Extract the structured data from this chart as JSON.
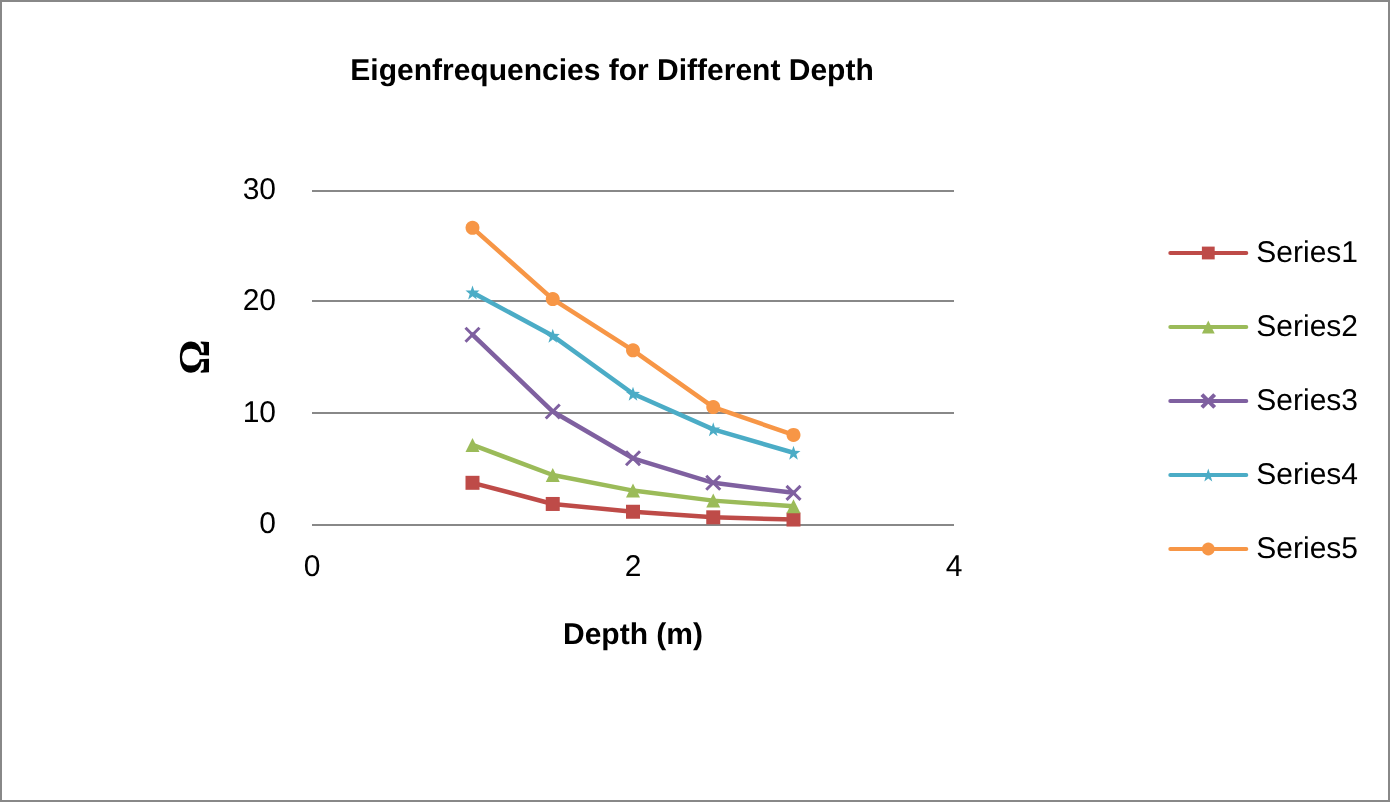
{
  "chart_data": {
    "type": "line",
    "title": "Eigenfrequencies for Different Depth",
    "xlabel": "Depth (m)",
    "ylabel": "Ω",
    "x": [
      1,
      1.5,
      2,
      2.5,
      3
    ],
    "xlim": [
      0,
      4
    ],
    "xticks": [
      0,
      2,
      4
    ],
    "ylim": [
      0,
      30
    ],
    "yticks": [
      0,
      10,
      20,
      30
    ],
    "grid": "y",
    "legend": "right",
    "line_style": "solid",
    "series": [
      {
        "name": "Series1",
        "color": "#be4b48",
        "marker": "square",
        "values": [
          3.7,
          1.8,
          1.1,
          0.6,
          0.4
        ]
      },
      {
        "name": "Series2",
        "color": "#9bbb59",
        "marker": "triangle",
        "values": [
          7.1,
          4.4,
          3.0,
          2.1,
          1.6
        ]
      },
      {
        "name": "Series3",
        "color": "#7f60a0",
        "marker": "cross",
        "values": [
          17.0,
          10.1,
          5.9,
          3.7,
          2.8
        ]
      },
      {
        "name": "Series4",
        "color": "#4bacc6",
        "marker": "star",
        "values": [
          20.8,
          16.9,
          11.7,
          8.5,
          6.4
        ]
      },
      {
        "name": "Series5",
        "color": "#f79646",
        "marker": "circle",
        "values": [
          26.6,
          20.2,
          15.6,
          10.5,
          8.0
        ]
      }
    ]
  }
}
